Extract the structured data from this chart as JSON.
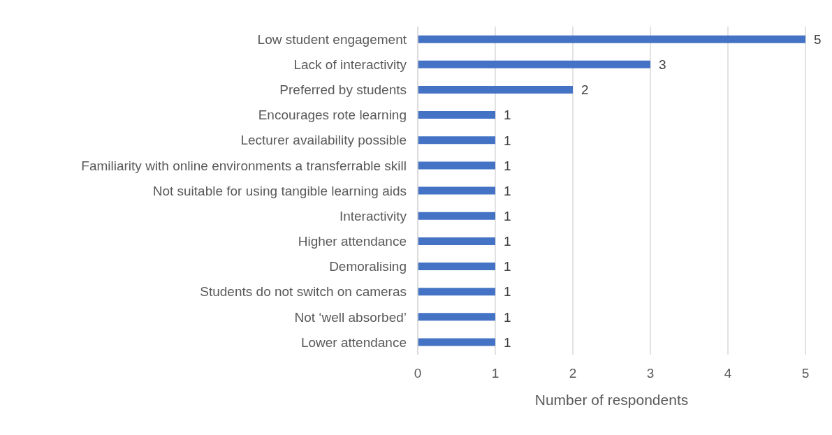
{
  "chart_data": {
    "type": "bar",
    "orientation": "horizontal",
    "xlabel": "Number of respondents",
    "categories": [
      "Low student engagement",
      "Lack of interactivity",
      "Preferred by students",
      "Encourages rote learning",
      "Lecturer availability possible",
      "Familiarity with online environments a transferrable skill",
      "Not suitable for using tangible learning aids",
      "Interactivity",
      "Higher attendance",
      "Demoralising",
      "Students do not switch on cameras",
      "Not ‘well absorbed’",
      "Lower attendance"
    ],
    "values": [
      5,
      3,
      2,
      1,
      1,
      1,
      1,
      1,
      1,
      1,
      1,
      1,
      1
    ],
    "color": "#4472c4",
    "xlim": [
      0,
      5
    ],
    "xticks": [
      0,
      1,
      2,
      3,
      4,
      5
    ],
    "grid": "x",
    "data_labels": true
  }
}
